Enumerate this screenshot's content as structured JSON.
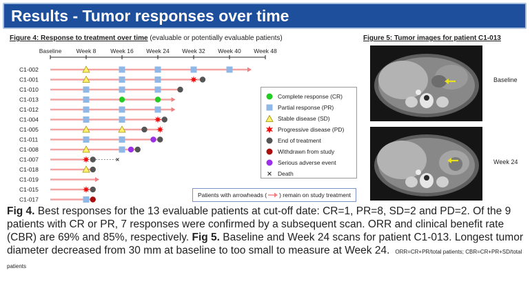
{
  "header": {
    "title": "Results - Tumor responses over time"
  },
  "fig4": {
    "caption_lead": "Figure 4: Response to treatment over time",
    "caption_rest": " (evaluable or potentially evaluable patients)"
  },
  "fig5": {
    "caption": "Figure 5: Tumor images for patient C1-013"
  },
  "legend": {
    "items": [
      {
        "label": "Complete response (CR)",
        "icon": "green-circle-icon",
        "color": "#22cc22"
      },
      {
        "label": "Partial response (PR)",
        "icon": "blue-square-icon",
        "color": "#8fb8e6"
      },
      {
        "label": "Stable disease (SD)",
        "icon": "yellow-triangle-icon",
        "color": "#fff16a"
      },
      {
        "label": "Progressive disease (PD)",
        "icon": "red-star-icon",
        "color": "#ee1111"
      },
      {
        "label": "End of treatment",
        "icon": "gray-circle-icon",
        "color": "#555555"
      },
      {
        "label": "Withdrawn from study",
        "icon": "darkred-circle-icon",
        "color": "#aa0d0d"
      },
      {
        "label": "Serious adverse event",
        "icon": "purple-circle-icon",
        "color": "#9b30e8"
      },
      {
        "label": "Death",
        "icon": "x-icon",
        "color": "#333333"
      }
    ]
  },
  "arrow_note": {
    "before": "Patients with arrowheads (",
    "after": ") remain on study treatment"
  },
  "scans": [
    {
      "label": "Baseline"
    },
    {
      "label": "Week 24"
    }
  ],
  "body": {
    "fig4_label": "Fig 4.",
    "fig4_text": " Best responses for the 13 evaluable patients at cut-off date: CR=1, PR=8, SD=2 and PD=2. Of the 9 patients with CR or PR, 7 responses were confirmed by a subsequent scan. ORR and clinical benefit rate (CBR) are 69% and 85%, respectively. ",
    "fig5_label": "Fig 5.",
    "fig5_text": " Baseline and Week 24 scans for patient C1-013. Longest tumor diameter decreased from 30 mm at baseline to too small to measure at Week 24.",
    "footnote": "ORR=CR+PR/total patients; CBR=CR+PR+SD/total patients"
  },
  "chart_data": {
    "type": "swimmer",
    "x_ticks": [
      {
        "label": "Baseline",
        "week": 0
      },
      {
        "label": "Week 8",
        "week": 8
      },
      {
        "label": "Week 16",
        "week": 16
      },
      {
        "label": "Week 24",
        "week": 24
      },
      {
        "label": "Week 32",
        "week": 32
      },
      {
        "label": "Week 40",
        "week": 40
      },
      {
        "label": "Week 48",
        "week": 48
      }
    ],
    "xlim": [
      0,
      48
    ],
    "bar_color": "#f4a3a3",
    "patients": [
      {
        "id": "C1-002",
        "end": 44,
        "arrow": true,
        "events": [
          {
            "w": 8,
            "t": "SD"
          },
          {
            "w": 16,
            "t": "PR"
          },
          {
            "w": 24,
            "t": "PR"
          },
          {
            "w": 32,
            "t": "PR"
          },
          {
            "w": 40,
            "t": "PR"
          }
        ]
      },
      {
        "id": "C1-001",
        "end": 34,
        "arrow": false,
        "events": [
          {
            "w": 8,
            "t": "SD"
          },
          {
            "w": 16,
            "t": "PR"
          },
          {
            "w": 24,
            "t": "PR"
          },
          {
            "w": 32,
            "t": "PD"
          },
          {
            "w": 34,
            "t": "EOT"
          }
        ]
      },
      {
        "id": "C1-010",
        "end": 29,
        "arrow": false,
        "events": [
          {
            "w": 8,
            "t": "PR"
          },
          {
            "w": 16,
            "t": "PR"
          },
          {
            "w": 24,
            "t": "PR"
          },
          {
            "w": 29,
            "t": "EOT"
          }
        ]
      },
      {
        "id": "C1-013",
        "end": 27,
        "arrow": true,
        "events": [
          {
            "w": 8,
            "t": "PR"
          },
          {
            "w": 16,
            "t": "CR"
          },
          {
            "w": 24,
            "t": "CR"
          }
        ]
      },
      {
        "id": "C1-012",
        "end": 27,
        "arrow": true,
        "events": [
          {
            "w": 8,
            "t": "PR"
          },
          {
            "w": 16,
            "t": "PR"
          },
          {
            "w": 24,
            "t": "PR"
          }
        ]
      },
      {
        "id": "C1-004",
        "end": 25.5,
        "arrow": false,
        "events": [
          {
            "w": 8,
            "t": "PR"
          },
          {
            "w": 16,
            "t": "PR"
          },
          {
            "w": 24,
            "t": "PD"
          },
          {
            "w": 25.5,
            "t": "EOT"
          }
        ]
      },
      {
        "id": "C1-005",
        "end": 24.5,
        "arrow": false,
        "events": [
          {
            "w": 8,
            "t": "SD"
          },
          {
            "w": 16,
            "t": "SD"
          },
          {
            "w": 21,
            "t": "EOT"
          },
          {
            "w": 24.5,
            "t": "PD"
          }
        ]
      },
      {
        "id": "C1-011",
        "end": 24.5,
        "arrow": false,
        "events": [
          {
            "w": 8,
            "t": "PR"
          },
          {
            "w": 16,
            "t": "PR"
          },
          {
            "w": 23,
            "t": "SAE"
          },
          {
            "w": 24.5,
            "t": "EOT"
          }
        ]
      },
      {
        "id": "C1-008",
        "end": 19.5,
        "arrow": false,
        "events": [
          {
            "w": 8,
            "t": "SD"
          },
          {
            "w": 16,
            "t": "PR"
          },
          {
            "w": 18,
            "t": "SAE"
          },
          {
            "w": 19.5,
            "t": "EOT"
          }
        ]
      },
      {
        "id": "C1-007",
        "end": 8,
        "arrow": false,
        "events": [
          {
            "w": 8,
            "t": "PD"
          },
          {
            "w": 9.5,
            "t": "EOT"
          },
          {
            "w": 15,
            "t": "DEATH"
          }
        ],
        "dashed_to": 15
      },
      {
        "id": "C1-018",
        "end": 9.5,
        "arrow": false,
        "events": [
          {
            "w": 8,
            "t": "SD"
          },
          {
            "w": 9.5,
            "t": "EOT"
          }
        ]
      },
      {
        "id": "C1-019",
        "end": 10,
        "arrow": true,
        "events": []
      },
      {
        "id": "C1-015",
        "end": 9.5,
        "arrow": false,
        "events": [
          {
            "w": 8,
            "t": "PD"
          },
          {
            "w": 9.5,
            "t": "EOT"
          }
        ]
      },
      {
        "id": "C1-017",
        "end": 9.5,
        "arrow": false,
        "events": [
          {
            "w": 8,
            "t": "PR"
          },
          {
            "w": 9.5,
            "t": "WD"
          }
        ]
      }
    ]
  }
}
